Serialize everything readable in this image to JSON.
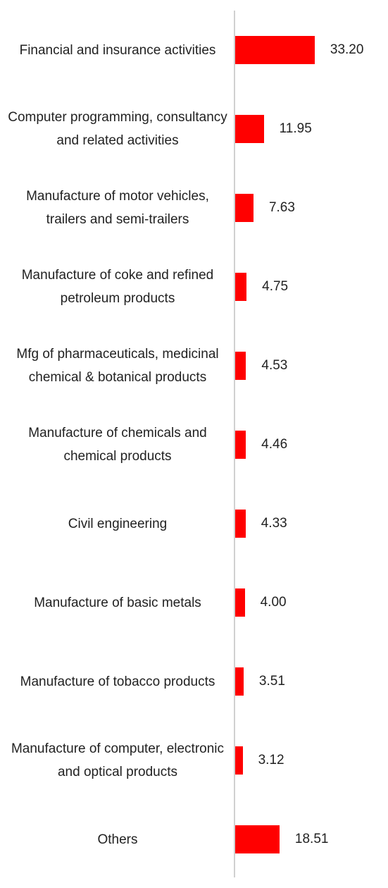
{
  "chart_data": {
    "type": "bar",
    "orientation": "horizontal",
    "color": "#ff0000",
    "categories": [
      "Financial and insurance activities",
      "Computer programming, consultancy and related activities",
      "Manufacture of motor vehicles, trailers and semi-trailers",
      "Manufacture of coke and refined petroleum products",
      "Mfg of pharmaceuticals, medicinal chemical & botanical products",
      "Manufacture of chemicals and chemical products",
      "Civil engineering",
      "Manufacture of basic metals",
      "Manufacture of tobacco products",
      "Manufacture of computer, electronic and optical products",
      "Others"
    ],
    "values": [
      33.2,
      11.95,
      7.63,
      4.75,
      4.53,
      4.46,
      4.33,
      4.0,
      3.51,
      3.12,
      18.51
    ],
    "value_labels": [
      "33.20",
      "11.95",
      "7.63",
      "4.75",
      "4.53",
      "4.46",
      "4.33",
      "4.00",
      "3.51",
      "3.12",
      "18.51"
    ]
  }
}
